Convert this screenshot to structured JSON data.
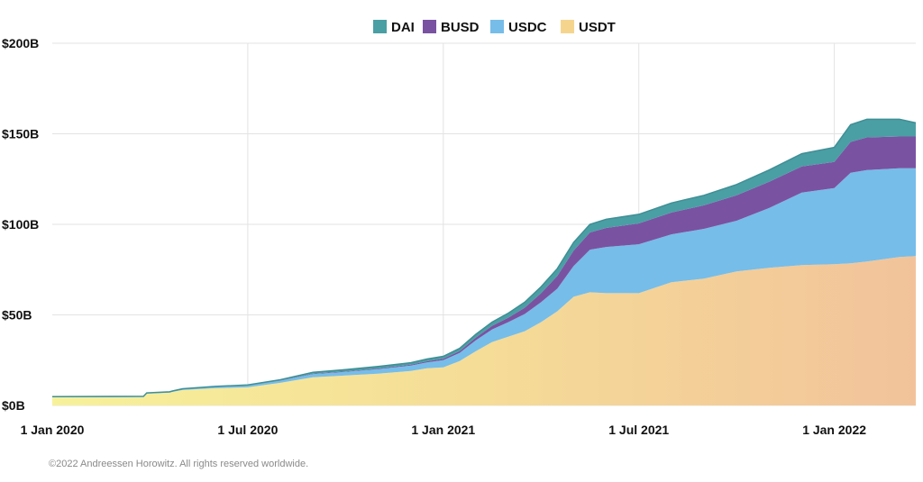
{
  "chart_data": {
    "type": "area",
    "stacked": true,
    "title": "",
    "xlabel": "",
    "ylabel": "",
    "y_unit": "B",
    "ylim": [
      0,
      200
    ],
    "yticks": [
      0,
      50,
      100,
      150,
      200
    ],
    "ytick_labels": [
      "$0B",
      "$50B",
      "$100B",
      "$150B",
      "$200B"
    ],
    "xlim": [
      0,
      26.5
    ],
    "xticks": [
      0,
      6,
      12,
      18,
      24
    ],
    "xtick_labels": [
      "1 Jan 2020",
      "1 Jul 2020",
      "1 Jan 2021",
      "1 Jul 2021",
      "1 Jan 2022"
    ],
    "x_unit": "months since 1 Jan 2020",
    "grid": true,
    "legend_position": "top-center",
    "x": [
      0,
      2.8,
      2.9,
      3.6,
      3.7,
      4.0,
      5.0,
      6.0,
      7.0,
      8.0,
      9.0,
      10.0,
      11.0,
      11.5,
      12.0,
      12.5,
      13.0,
      13.5,
      14.0,
      14.5,
      15.0,
      15.5,
      16.0,
      16.5,
      17.0,
      18.0,
      19.0,
      20.0,
      21.0,
      22.0,
      23.0,
      24.0,
      24.5,
      25.0,
      26.0,
      26.5
    ],
    "series": [
      {
        "name": "USDT",
        "color": "#f2d48c",
        "values": [
          4.5,
          4.6,
          6.5,
          7.0,
          7.5,
          8.5,
          9.5,
          10.0,
          12.5,
          15.5,
          16.5,
          17.5,
          19.0,
          20.5,
          21.0,
          24.5,
          30.0,
          35.0,
          38.0,
          41.0,
          46.0,
          52.0,
          60.0,
          62.5,
          62.0,
          62.0,
          68.0,
          70.0,
          74.0,
          76.0,
          77.5,
          78.0,
          78.5,
          79.5,
          82.0,
          82.5
        ]
      },
      {
        "name": "USDC",
        "color": "#76bde9",
        "values": [
          0.3,
          0.3,
          0.3,
          0.4,
          0.4,
          0.6,
          0.7,
          1.0,
          1.2,
          1.8,
          2.0,
          2.5,
          3.0,
          3.3,
          4.0,
          4.5,
          6.0,
          7.0,
          8.0,
          9.5,
          11.0,
          12.5,
          17.0,
          23.5,
          25.5,
          27.0,
          26.5,
          27.5,
          28.0,
          33.0,
          40.0,
          42.0,
          50.0,
          50.5,
          49.0,
          48.5
        ]
      },
      {
        "name": "BUSD",
        "color": "#7a52a2",
        "values": [
          0.0,
          0.0,
          0.0,
          0.0,
          0.0,
          0.0,
          0.1,
          0.1,
          0.1,
          0.2,
          0.3,
          0.4,
          0.5,
          0.6,
          0.8,
          1.0,
          1.5,
          2.0,
          2.5,
          3.5,
          5.0,
          7.0,
          8.5,
          9.5,
          10.5,
          11.5,
          12.0,
          13.0,
          14.0,
          14.5,
          14.5,
          14.5,
          17.0,
          18.0,
          17.5,
          17.5
        ]
      },
      {
        "name": "DAI",
        "color": "#4a9fa4",
        "values": [
          0.1,
          0.1,
          0.1,
          0.1,
          0.1,
          0.1,
          0.2,
          0.2,
          0.4,
          0.8,
          1.0,
          1.1,
          1.1,
          1.2,
          1.3,
          1.5,
          1.8,
          2.0,
          2.5,
          3.0,
          3.5,
          4.0,
          4.5,
          4.5,
          4.8,
          5.0,
          5.3,
          5.5,
          6.0,
          6.5,
          7.0,
          8.0,
          9.5,
          10.0,
          9.5,
          7.5
        ]
      }
    ]
  },
  "footnote": "©2022 Andreessen Horowitz. All rights reserved worldwide."
}
